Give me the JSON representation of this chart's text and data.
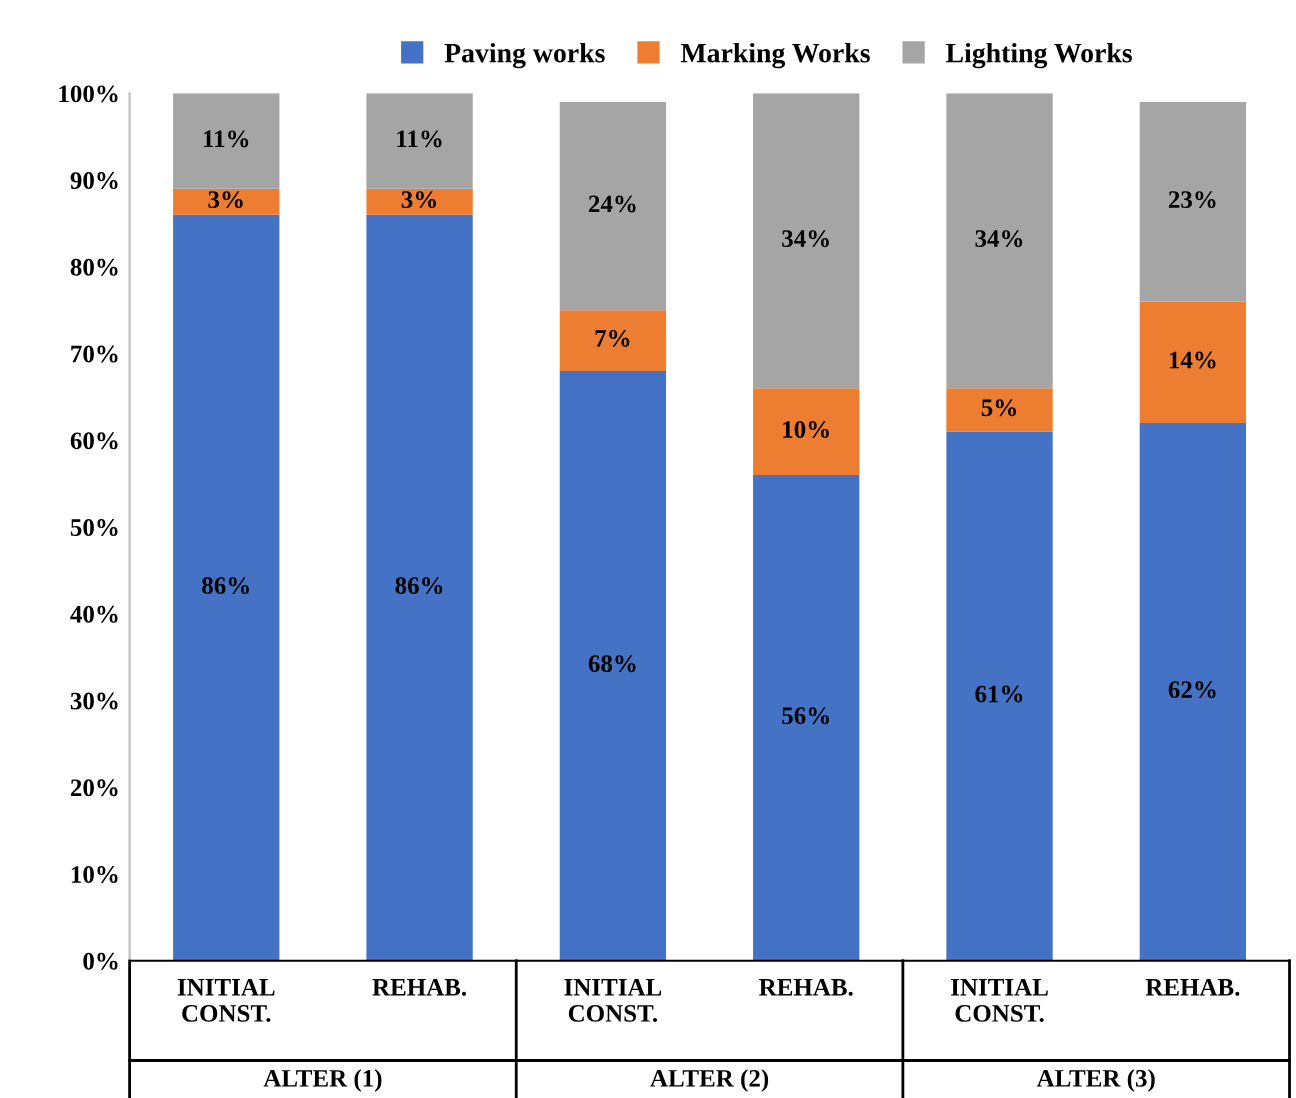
{
  "chart_data": {
    "type": "bar",
    "stacked": true,
    "categories": [
      "INITIAL\nCONST.",
      "REHAB.",
      "INITIAL\nCONST.",
      "REHAB.",
      "INITIAL\nCONST.",
      "REHAB."
    ],
    "series": [
      {
        "name": "Paving works",
        "color": "#4472c4",
        "values": [
          86,
          86,
          68,
          56,
          61,
          62
        ],
        "value_labels": [
          "86%",
          "86%",
          "68%",
          "56%",
          "61%",
          "62%"
        ]
      },
      {
        "name": "Marking Works",
        "color": "#ed7d31",
        "values": [
          3,
          3,
          7,
          10,
          5,
          14
        ],
        "value_labels": [
          "3%",
          "3%",
          "7%",
          "10%",
          "5%",
          "14%"
        ]
      },
      {
        "name": "Lighting Works",
        "color": "#a5a5a5",
        "values": [
          11,
          11,
          24,
          34,
          34,
          23
        ],
        "value_labels": [
          "11%",
          "11%",
          "24%",
          "34%",
          "34%",
          "23%"
        ]
      }
    ],
    "ylim": [
      0,
      100
    ],
    "yticks": [
      {
        "value": 0,
        "label": "0%"
      },
      {
        "value": 10,
        "label": "10%"
      },
      {
        "value": 20,
        "label": "20%"
      },
      {
        "value": 30,
        "label": "30%"
      },
      {
        "value": 40,
        "label": "40%"
      },
      {
        "value": 50,
        "label": "50%"
      },
      {
        "value": 60,
        "label": "60%"
      },
      {
        "value": 70,
        "label": "70%"
      },
      {
        "value": 80,
        "label": "80%"
      },
      {
        "value": 90,
        "label": "90%"
      },
      {
        "value": 100,
        "label": "100%"
      }
    ],
    "annotations": [
      "ALTER (1)",
      "ALTER (2)",
      "ALTER (3)"
    ],
    "legend": "top",
    "grid": false
  }
}
